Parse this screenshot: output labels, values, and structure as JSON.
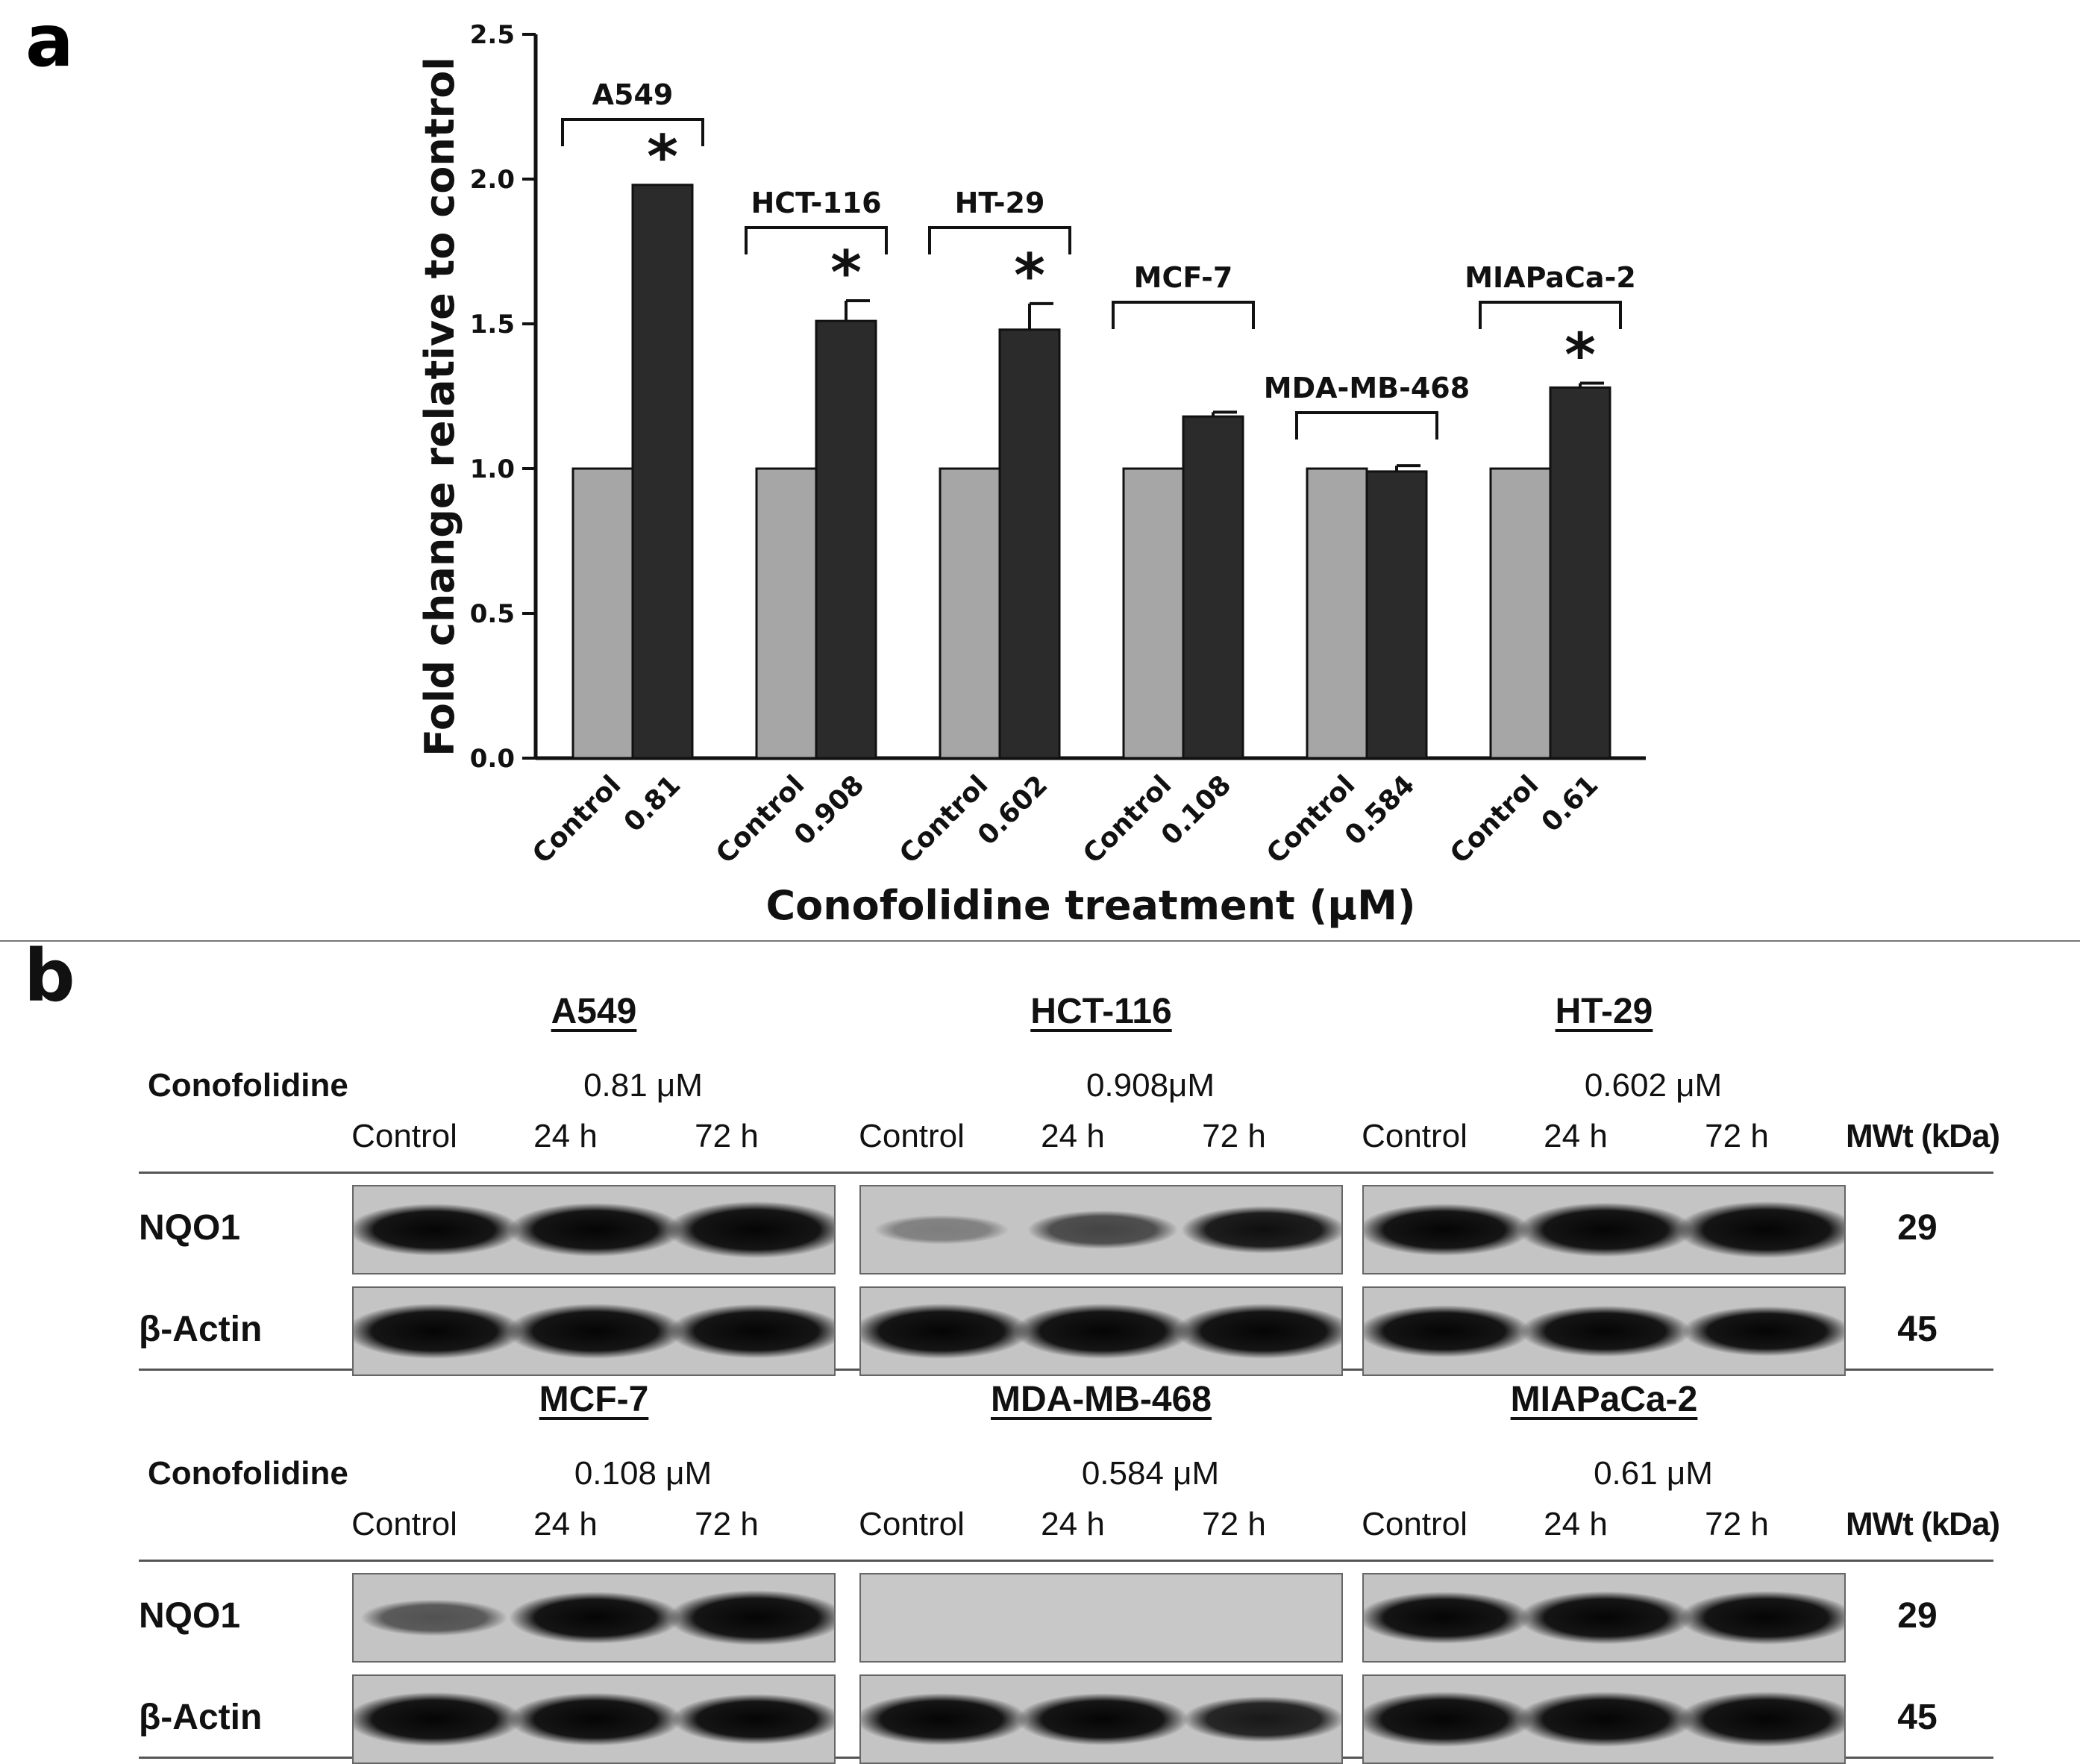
{
  "panel_a_letter": "a",
  "panel_b_letter": "b",
  "chart_data": {
    "type": "bar",
    "title": "",
    "xlabel": "Conofolidine treatment (μM)",
    "ylabel": "Fold change relative to control",
    "ylim": [
      0,
      2.5
    ],
    "yticks": [
      "0.0",
      "0.5",
      "1.0",
      "1.5",
      "2.0",
      "2.5"
    ],
    "grid": false,
    "legend": "none",
    "colors": {
      "control": "#a6a6a6",
      "treated": "#2b2b2b"
    },
    "groups": [
      {
        "name": "A549",
        "categories": [
          "Control",
          "0.81"
        ],
        "values": [
          1.0,
          1.98
        ],
        "error": [
          0,
          0
        ],
        "significant": true
      },
      {
        "name": "HCT-116",
        "categories": [
          "Control",
          "0.908"
        ],
        "values": [
          1.0,
          1.51
        ],
        "error": [
          0,
          0.07
        ],
        "significant": true
      },
      {
        "name": "HT-29",
        "categories": [
          "Control",
          "0.602"
        ],
        "values": [
          1.0,
          1.48
        ],
        "error": [
          0,
          0.09
        ],
        "significant": true
      },
      {
        "name": "MCF-7",
        "categories": [
          "Control",
          "0.108"
        ],
        "values": [
          1.0,
          1.18
        ],
        "error": [
          0,
          0.015
        ],
        "significant": false
      },
      {
        "name": "MDA-MB-468",
        "categories": [
          "Control",
          "0.584"
        ],
        "values": [
          1.0,
          0.99
        ],
        "error": [
          0,
          0.02
        ],
        "significant": false
      },
      {
        "name": "MIAPaCa-2",
        "categories": [
          "Control",
          "0.61"
        ],
        "values": [
          1.0,
          1.28
        ],
        "error": [
          0,
          0.015
        ],
        "significant": true
      }
    ],
    "significance_marker": "*"
  },
  "blots": {
    "treatment_label": "Conofolidine",
    "lanes": [
      "Control",
      "24 h",
      "72 h"
    ],
    "mwt_header": "MWt (kDa)",
    "rows": [
      {
        "protein": "NQO1",
        "mwt": "29"
      },
      {
        "protein": "β-Actin",
        "mwt": "45"
      }
    ],
    "blocks": [
      {
        "cells": [
          {
            "name": "A549",
            "concentration": "0.81 μM",
            "nqo1": [
              0.85,
              0.9,
              1.0
            ],
            "actin": [
              0.95,
              0.95,
              0.92
            ]
          },
          {
            "name": "HCT-116",
            "concentration": "0.908μM",
            "nqo1": [
              0.12,
              0.42,
              0.7
            ],
            "actin": [
              0.95,
              0.95,
              0.95
            ]
          },
          {
            "name": "HT-29",
            "concentration": "0.602 μM",
            "nqo1": [
              0.85,
              0.92,
              1.0
            ],
            "actin": [
              0.85,
              0.82,
              0.78
            ]
          }
        ]
      },
      {
        "cells": [
          {
            "name": "MCF-7",
            "concentration": "0.108 μM",
            "nqo1": [
              0.35,
              0.85,
              0.95
            ],
            "actin": [
              0.92,
              0.88,
              0.8
            ]
          },
          {
            "name": "MDA-MB-468",
            "concentration": "0.584 μM",
            "nqo1": [
              0,
              0,
              0
            ],
            "actin": [
              0.85,
              0.85,
              0.65
            ]
          },
          {
            "name": "MIAPaCa-2",
            "concentration": "0.61 μM",
            "nqo1": [
              0.85,
              0.88,
              0.9
            ],
            "actin": [
              0.95,
              0.95,
              0.95
            ]
          }
        ]
      }
    ]
  }
}
